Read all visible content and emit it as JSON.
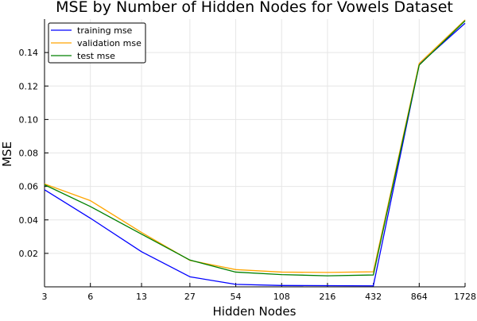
{
  "chart_data": {
    "type": "line",
    "title": "MSE by Number of Hidden Nodes for Vowels Dataset",
    "xlabel": "Hidden Nodes",
    "ylabel": "MSE",
    "x_scale": "log",
    "categories": [
      "3",
      "6",
      "13",
      "27",
      "54",
      "108",
      "216",
      "432",
      "864",
      "1728"
    ],
    "x": [
      3,
      6,
      13,
      27,
      54,
      108,
      216,
      432,
      864,
      1728
    ],
    "y_ticks": [
      "0.02",
      "0.04",
      "0.06",
      "0.08",
      "0.10",
      "0.12",
      "0.14"
    ],
    "y_tick_values": [
      0.02,
      0.04,
      0.06,
      0.08,
      0.1,
      0.12,
      0.14
    ],
    "ylim": [
      0.0,
      0.16
    ],
    "grid": true,
    "legend_position": "top-left",
    "series": [
      {
        "name": "training mse",
        "color": "#0000ff",
        "values": [
          0.058,
          0.041,
          0.021,
          0.006,
          0.0015,
          0.0008,
          0.0007,
          0.0006,
          0.133,
          0.1575
        ]
      },
      {
        "name": "validation mse",
        "color": "#ffa500",
        "values": [
          0.0615,
          0.0515,
          0.0325,
          0.0158,
          0.0103,
          0.0088,
          0.0086,
          0.009,
          0.1335,
          0.1595
        ]
      },
      {
        "name": "test mse",
        "color": "#008000",
        "values": [
          0.061,
          0.048,
          0.0315,
          0.016,
          0.0088,
          0.0073,
          0.0066,
          0.0071,
          0.1325,
          0.159
        ]
      }
    ]
  }
}
